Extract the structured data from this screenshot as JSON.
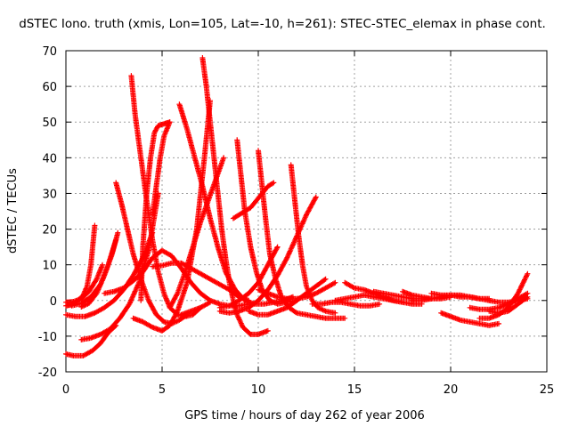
{
  "chart_data": {
    "type": "scatter",
    "title": "dSTEC Iono. truth (xmis, Lon=105, Lat=-10, h=261): STEC-STEC_elemax in phase cont.",
    "xlabel": "GPS time / hours of day 262 of year 2006",
    "ylabel": "dSTEC  / TECUs",
    "xlim": [
      0,
      25
    ],
    "ylim": [
      -20,
      70
    ],
    "xticks": [
      "0",
      "5",
      "10",
      "15",
      "20",
      "25"
    ],
    "yticks": [
      "-20",
      "-10",
      "0",
      "10",
      "20",
      "30",
      "40",
      "50",
      "60",
      "70"
    ],
    "grid": true,
    "legend": "none",
    "marker": "plus",
    "marker_color": "#ff0000",
    "series": [
      {
        "x": [
          0.0,
          0.3,
          0.6,
          0.9,
          1.1,
          1.3,
          1.5
        ],
        "y": [
          -1.5,
          -1.2,
          -0.2,
          1.5,
          4,
          10,
          21
        ]
      },
      {
        "x": [
          0.0,
          0.4,
          0.8,
          1.2,
          1.6,
          1.9
        ],
        "y": [
          -0.5,
          -0.3,
          0.5,
          2.5,
          6,
          10
        ]
      },
      {
        "x": [
          0.3,
          0.8,
          1.3,
          1.8,
          2.2,
          2.6
        ],
        "y": [
          -1.5,
          -0.8,
          1,
          4.5,
          10,
          17
        ]
      },
      {
        "x": [
          0.8,
          1.2,
          1.6,
          2.0,
          2.4,
          2.7
        ],
        "y": [
          -1.8,
          -0.8,
          2,
          7,
          13,
          19
        ]
      },
      {
        "x": [
          0.0,
          0.4,
          0.9,
          1.4,
          1.8,
          2.2,
          2.6
        ],
        "y": [
          -15,
          -15.5,
          -15.5,
          -14,
          -12,
          -9,
          -7
        ]
      },
      {
        "x": [
          0.0,
          0.5,
          1.0,
          1.5,
          2.0,
          2.5,
          3.0,
          3.5,
          4.0,
          4.5
        ],
        "y": [
          -4,
          -4.5,
          -4.5,
          -3.5,
          -2,
          0,
          3,
          7,
          12,
          19
        ]
      },
      {
        "x": [
          0.8,
          1.3,
          1.8,
          2.3,
          2.8,
          3.3,
          3.8,
          4.3,
          4.8
        ],
        "y": [
          -11,
          -10.5,
          -9.5,
          -8,
          -5,
          -1,
          5,
          14,
          30
        ]
      },
      {
        "x": [
          2.6,
          2.9,
          3.2,
          3.5,
          3.9,
          4.3,
          4.7,
          5.1,
          5.5,
          5.9,
          6.3
        ],
        "y": [
          33,
          27,
          20,
          13,
          6,
          0,
          -4,
          -6,
          -6.5,
          -5.5,
          -4
        ]
      },
      {
        "x": [
          3.4,
          3.6,
          3.9,
          4.2,
          4.5,
          4.8,
          5.1,
          5.4,
          5.8,
          6.2,
          6.6,
          7.0
        ],
        "y": [
          63,
          52,
          40,
          28,
          17,
          8,
          2,
          -2,
          -4,
          -4.5,
          -4,
          -2
        ]
      },
      {
        "x": [
          3.9,
          4.0,
          4.2,
          4.4,
          4.6,
          4.8,
          5.1,
          5.4
        ],
        "y": [
          0,
          15,
          30,
          40,
          47,
          49,
          49.5,
          50
        ]
      },
      {
        "x": [
          4.5,
          4.7,
          4.9,
          5.1,
          5.4
        ],
        "y": [
          24,
          32,
          40,
          46,
          50
        ]
      },
      {
        "x": [
          3.5,
          4.0,
          4.5,
          5.0,
          5.4,
          5.8,
          6.3,
          6.8,
          7.2,
          7.5
        ],
        "y": [
          -5,
          -6,
          -7.5,
          -8.5,
          -7,
          -3,
          5,
          20,
          40,
          56
        ]
      },
      {
        "x": [
          5.9,
          6.3,
          6.7,
          7.1,
          7.5,
          7.9,
          8.3,
          8.8,
          9.3,
          9.8,
          10.3,
          10.8,
          11.3,
          11.8
        ],
        "y": [
          55,
          48,
          40,
          32,
          23,
          15,
          8,
          3,
          0,
          -1,
          -1,
          -0.5,
          0,
          1
        ]
      },
      {
        "x": [
          7.1,
          7.3,
          7.5,
          7.7,
          7.9,
          8.1,
          8.3,
          8.5,
          8.7,
          8.9,
          9.2,
          9.6,
          10.0,
          10.5
        ],
        "y": [
          68,
          60,
          50,
          40,
          30,
          20,
          12,
          5,
          0,
          -4,
          -7.5,
          -9.5,
          -9.5,
          -8.5
        ]
      },
      {
        "x": [
          5.4,
          5.8,
          6.2,
          6.6,
          7.0,
          7.4,
          7.8,
          8.2
        ],
        "y": [
          -2,
          2,
          8,
          15,
          22,
          28,
          34,
          40
        ]
      },
      {
        "x": [
          4.5,
          5.0,
          5.5,
          6.0,
          6.5,
          7.0,
          7.5,
          8.0,
          8.5,
          9.0,
          9.5
        ],
        "y": [
          9.5,
          9.8,
          10.5,
          10.5,
          9,
          7.5,
          6,
          4.5,
          3,
          1,
          0
        ]
      },
      {
        "x": [
          2.0,
          2.5,
          3.0,
          3.5,
          4.0,
          4.5,
          5.0,
          5.5,
          6.0,
          6.5,
          7.0,
          7.5,
          8.0,
          8.5,
          9.0,
          9.5
        ],
        "y": [
          2,
          2.5,
          3.5,
          5.5,
          8,
          12,
          14,
          12.5,
          9,
          5,
          2,
          0,
          -1,
          -1.5,
          -1.5,
          -1
        ]
      },
      {
        "x": [
          6.0,
          6.5,
          7.0,
          7.5
        ],
        "y": [
          -4,
          -3,
          -2,
          -0.5
        ]
      },
      {
        "x": [
          8.9,
          9.1,
          9.3,
          9.6,
          9.9,
          10.2,
          10.6,
          11.0,
          11.5,
          12.0
        ],
        "y": [
          45,
          35,
          25,
          15,
          8,
          3,
          0,
          -1,
          -0.5,
          0
        ]
      },
      {
        "x": [
          10.0,
          10.2,
          10.4,
          10.6,
          10.9,
          11.2,
          11.6,
          12.0,
          12.5,
          13.0,
          13.5,
          14.0,
          14.5
        ],
        "y": [
          42,
          32,
          22,
          13,
          6,
          1,
          -2,
          -3.5,
          -4,
          -4.5,
          -5,
          -5,
          -5
        ]
      },
      {
        "x": [
          11.7,
          11.9,
          12.1,
          12.3,
          12.5,
          12.8,
          13.1,
          13.5,
          14.0
        ],
        "y": [
          38,
          28,
          18,
          10,
          4,
          0,
          -2,
          -3,
          -3.5
        ]
      },
      {
        "x": [
          8.7,
          9.0,
          9.3,
          9.6,
          9.9,
          10.2,
          10.5,
          10.8
        ],
        "y": [
          23,
          24,
          25,
          26,
          28,
          30,
          32,
          33
        ]
      },
      {
        "x": [
          8.0,
          8.5,
          9.0,
          9.5,
          10.0,
          10.5,
          11.0
        ],
        "y": [
          -2,
          -1.5,
          0,
          2,
          5,
          10,
          15
        ]
      },
      {
        "x": [
          8.0,
          8.5,
          9.0,
          9.5,
          10.0,
          10.5,
          11.0,
          11.5,
          12.0,
          12.5,
          13.0
        ],
        "y": [
          -3,
          -3.5,
          -3,
          -2,
          0,
          3,
          7,
          12,
          18,
          24,
          29
        ]
      },
      {
        "x": [
          10.0,
          10.5,
          11.0,
          11.5,
          12.0,
          12.5,
          13.0,
          13.5,
          14.0
        ],
        "y": [
          3,
          2,
          1,
          0.5,
          0.5,
          1,
          2,
          3.5,
          5
        ]
      },
      {
        "x": [
          9.5,
          10.0,
          10.5,
          11.0,
          11.5,
          12.0,
          12.5,
          13.0,
          13.5
        ],
        "y": [
          -3,
          -4,
          -4,
          -3,
          -2,
          0,
          2,
          4,
          6
        ]
      },
      {
        "x": [
          14.0,
          14.5,
          15.0,
          15.5,
          16.0,
          16.5,
          17.0,
          17.5
        ],
        "y": [
          0,
          0.5,
          1,
          1.5,
          1,
          0.5,
          0,
          -0.5
        ]
      },
      {
        "x": [
          12.8,
          13.3,
          13.8,
          14.3,
          14.8,
          15.3,
          15.8,
          16.3
        ],
        "y": [
          -1,
          -1,
          -0.5,
          -0.5,
          -1,
          -1.5,
          -1.5,
          -1
        ]
      },
      {
        "x": [
          14.5,
          15.0,
          15.5,
          16.0,
          16.5,
          17.0,
          17.5,
          18.0,
          18.5
        ],
        "y": [
          5,
          3.5,
          3,
          2,
          1,
          0,
          -0.5,
          -1,
          -1
        ]
      },
      {
        "x": [
          16.0,
          16.5,
          17.0,
          17.5,
          18.0,
          18.5,
          19.0
        ],
        "y": [
          2.5,
          2,
          1.5,
          1,
          0.5,
          0.5,
          0.5
        ]
      },
      {
        "x": [
          17.5,
          18.0,
          18.5,
          19.0,
          19.5,
          20.0
        ],
        "y": [
          2.5,
          1.5,
          1,
          0.5,
          0.5,
          1
        ]
      },
      {
        "x": [
          18.0,
          18.5,
          19.0,
          19.5,
          20.0,
          20.5,
          21.0,
          21.5,
          22.0
        ],
        "y": [
          0,
          0,
          0.5,
          1,
          1.5,
          1.5,
          1,
          0.5,
          0
        ]
      },
      {
        "x": [
          19.0,
          19.5,
          20.0,
          20.5,
          21.0,
          21.5,
          22.0
        ],
        "y": [
          2,
          1.5,
          1.5,
          1,
          1,
          0.5,
          0.5
        ]
      },
      {
        "x": [
          19.5,
          20.0,
          20.5,
          21.0,
          21.5,
          22.0,
          22.5
        ],
        "y": [
          -3.5,
          -4.5,
          -5.5,
          -6,
          -6.5,
          -7,
          -6.5
        ]
      },
      {
        "x": [
          21.0,
          21.5,
          22.0,
          22.5,
          23.0,
          23.5,
          24.0
        ],
        "y": [
          -2,
          -2.5,
          -2.5,
          -2,
          -1,
          0.5,
          2
        ]
      },
      {
        "x": [
          22.0,
          22.5,
          23.0,
          23.5,
          24.0
        ],
        "y": [
          -3,
          -3.5,
          -3,
          -1,
          1
        ]
      },
      {
        "x": [
          21.5,
          22.0,
          22.5,
          23.0,
          23.5,
          24.0
        ],
        "y": [
          -5,
          -5,
          -4,
          -2,
          2,
          7.5
        ]
      },
      {
        "x": [
          22.0,
          22.5,
          23.0,
          23.5,
          24.0
        ],
        "y": [
          0,
          -0.5,
          -0.5,
          0,
          0.5
        ]
      }
    ]
  }
}
